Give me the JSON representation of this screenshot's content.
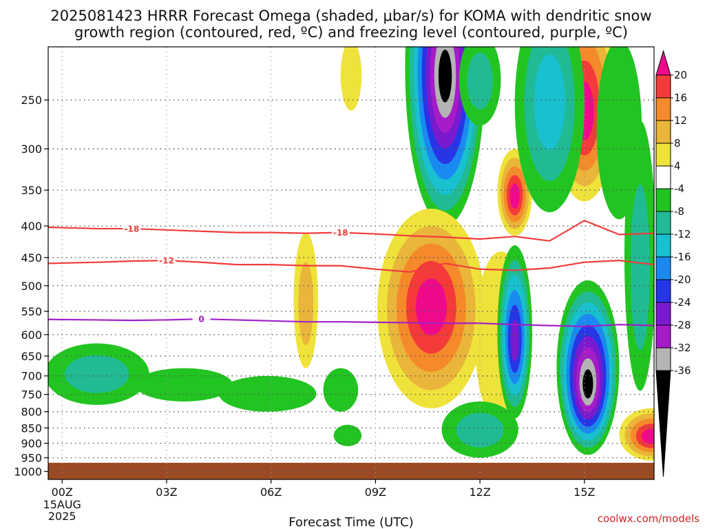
{
  "title_line1": "2025081423 HRRR Forecast Omega (shaded, μbar/s) for KOMA with dendritic snow",
  "title_line2": "growth region (contoured, red, ºC) and freezing level (contoured, purple, ºC)",
  "credit": "coolwx.com/models",
  "chart_data": {
    "type": "heatmap",
    "xlabel": "Forecast Time (UTC)",
    "ylabel": "",
    "y_scale": "log-pressure",
    "y_reversed": true,
    "xlim": [
      -0.4,
      17
    ],
    "ylim": [
      1030,
      205
    ],
    "x_ticks": [
      0,
      3,
      6,
      9,
      12,
      15
    ],
    "x_tick_labels": [
      "00Z",
      "03Z",
      "06Z",
      "09Z",
      "12Z",
      "15Z"
    ],
    "x_date_label": "15AUG",
    "x_year_label": "2025",
    "y_ticks": [
      250,
      300,
      350,
      400,
      450,
      500,
      550,
      600,
      650,
      700,
      750,
      800,
      850,
      900,
      950,
      1000
    ],
    "y_tick_labels": [
      "250",
      "300",
      "350",
      "400",
      "450",
      "500",
      "550",
      "600",
      "650",
      "700",
      "750",
      "800",
      "850",
      "900",
      "950",
      "1000"
    ],
    "grid": "dotted",
    "terrain_pressure": 968,
    "colorbar": {
      "labels": [
        "20",
        "16",
        "12",
        "8",
        "4",
        "-4",
        "-8",
        "-12",
        "-16",
        "-20",
        "-24",
        "-28",
        "-32",
        "-36"
      ],
      "bins": [
        {
          "from": 20,
          "to": 99,
          "color": "#ef0a8c"
        },
        {
          "from": 16,
          "to": 20,
          "color": "#f43a3a"
        },
        {
          "from": 12,
          "to": 16,
          "color": "#f58a2a"
        },
        {
          "from": 8,
          "to": 12,
          "color": "#e9b53a"
        },
        {
          "from": 4,
          "to": 8,
          "color": "#efe23a"
        },
        {
          "from": -4,
          "to": 4,
          "color": "#ffffff"
        },
        {
          "from": -8,
          "to": -4,
          "color": "#22c422"
        },
        {
          "from": -12,
          "to": -8,
          "color": "#20bb95"
        },
        {
          "from": -16,
          "to": -12,
          "color": "#18c0d0"
        },
        {
          "from": -20,
          "to": -16,
          "color": "#1a8af0"
        },
        {
          "from": -24,
          "to": -20,
          "color": "#2636e6"
        },
        {
          "from": -28,
          "to": -24,
          "color": "#7a1ad0"
        },
        {
          "from": -32,
          "to": -28,
          "color": "#a51cc8"
        },
        {
          "from": -36,
          "to": -32,
          "color": "#b4b4b4"
        },
        {
          "from": -99,
          "to": -36,
          "color": "#000000"
        }
      ]
    },
    "omega_features": [
      {
        "x": 11.0,
        "p": 230,
        "rx": 1.15,
        "rp_up": 140,
        "rp_down": 170,
        "peak": -40,
        "bins": 13
      },
      {
        "x": 12.0,
        "p": 235,
        "rx": 0.6,
        "rp_up": 40,
        "rp_down": 40,
        "peak": -14,
        "bins": 2
      },
      {
        "x": 10.6,
        "p": 540,
        "rx": 1.55,
        "rp_up": 165,
        "rp_down": 250,
        "peak": 24,
        "bins": 6
      },
      {
        "x": 12.6,
        "p": 590,
        "rx": 0.75,
        "rp_up": 150,
        "rp_down": 250,
        "peak": 4.5,
        "bins": 1
      },
      {
        "x": 15.0,
        "p": 265,
        "rx": 0.95,
        "rp_up": 95,
        "rp_down": 100,
        "peak": 24,
        "bins": 6
      },
      {
        "x": 13.0,
        "p": 360,
        "rx": 0.5,
        "rp_up": 60,
        "rp_down": 55,
        "peak": 24,
        "bins": 6
      },
      {
        "x": 15.1,
        "p": 730,
        "rx": 0.9,
        "rp_up": 240,
        "rp_down": 210,
        "peak": -40,
        "bins": 9
      },
      {
        "x": 13.0,
        "p": 620,
        "rx": 0.5,
        "rp_up": 190,
        "rp_down": 200,
        "peak": -26,
        "bins": 6
      },
      {
        "x": 12.0,
        "p": 860,
        "rx": 1.1,
        "rp_up": 90,
        "rp_down": 90,
        "peak": -12,
        "bins": 2
      },
      {
        "x": 14.0,
        "p": 250,
        "rx": 1.0,
        "rp_up": 80,
        "rp_down": 130,
        "peak": -15,
        "bins": 3
      },
      {
        "x": 16.0,
        "p": 300,
        "rx": 0.65,
        "rp_up": 100,
        "rp_down": 90,
        "peak": -6,
        "bins": 1
      },
      {
        "x": 16.9,
        "p": 880,
        "rx": 0.9,
        "rp_up": 90,
        "rp_down": 80,
        "peak": 24,
        "bins": 6
      },
      {
        "x": 16.6,
        "p": 500,
        "rx": 0.45,
        "rp_up": 230,
        "rp_down": 240,
        "peak": -12,
        "bins": 2
      },
      {
        "x": 8.3,
        "p": 230,
        "rx": 0.3,
        "rp_up": 30,
        "rp_down": 30,
        "peak": 5,
        "bins": 1
      },
      {
        "x": 7.0,
        "p": 545,
        "rx": 0.35,
        "rp_up": 135,
        "rp_down": 135,
        "peak": 9,
        "bins": 2
      },
      {
        "x": 1.0,
        "p": 695,
        "rx": 1.5,
        "rp_up": 75,
        "rp_down": 85,
        "peak": -10,
        "bins": 2
      },
      {
        "x": 3.5,
        "p": 715,
        "rx": 1.4,
        "rp_up": 35,
        "rp_down": 55,
        "peak": -6,
        "bins": 1
      },
      {
        "x": 5.9,
        "p": 740,
        "rx": 1.4,
        "rp_up": 40,
        "rp_down": 60,
        "peak": -6,
        "bins": 1
      },
      {
        "x": 8.0,
        "p": 740,
        "rx": 0.5,
        "rp_up": 60,
        "rp_down": 60,
        "peak": -6,
        "bins": 1
      },
      {
        "x": 8.2,
        "p": 875,
        "rx": 0.4,
        "rp_up": 35,
        "rp_down": 35,
        "peak": -6,
        "bins": 1
      }
    ],
    "contours": [
      {
        "label": "-18",
        "color": "#f03c3c",
        "x": [
          -0.4,
          1,
          2,
          3,
          4,
          5,
          6,
          7,
          8,
          9,
          10,
          11,
          12,
          13,
          14,
          15,
          16,
          17
        ],
        "p": [
          402,
          404,
          404,
          406,
          408,
          410,
          410,
          411,
          410,
          412,
          415,
          417,
          420,
          416,
          423,
          392,
          413,
          411
        ],
        "label_x": [
          2,
          8
        ]
      },
      {
        "label": "-12",
        "color": "#f03c3c",
        "x": [
          -0.4,
          1,
          2,
          3,
          4,
          5,
          6,
          7,
          8,
          9,
          10,
          11,
          12,
          13,
          14,
          15,
          16,
          17
        ],
        "p": [
          460,
          458,
          456,
          455,
          458,
          462,
          462,
          464,
          464,
          470,
          475,
          460,
          470,
          472,
          468,
          458,
          455,
          462
        ],
        "label_x": [
          3
        ]
      },
      {
        "label": "0",
        "color": "#a020c8",
        "x": [
          -0.4,
          1,
          2,
          3,
          4,
          5,
          6,
          7,
          8,
          9,
          10,
          11,
          12,
          13,
          14,
          15,
          16,
          17
        ],
        "p": [
          567,
          568,
          569,
          568,
          566,
          568,
          570,
          572,
          572,
          573,
          574,
          575,
          575,
          578,
          580,
          582,
          578,
          580
        ],
        "label_x": [
          4
        ]
      }
    ]
  }
}
